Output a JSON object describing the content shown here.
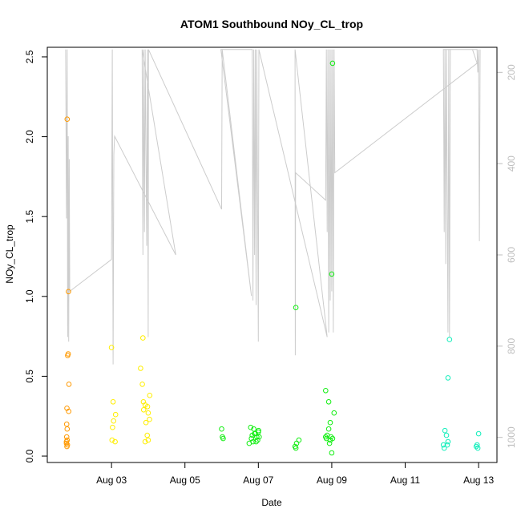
{
  "chart_data": {
    "type": "scatter",
    "title": "ATOM1 Southbound NOy_CL_trop",
    "xlabel": "Date",
    "ylabel": "NOy_CL_trop",
    "xlim": [
      "2016-08-01 06:00",
      "2016-08-13 12:00"
    ],
    "ylim": [
      -0.04,
      2.56
    ],
    "x_ticks": [
      {
        "date": "2016-08-03",
        "label": "Aug 03"
      },
      {
        "date": "2016-08-05",
        "label": "Aug 05"
      },
      {
        "date": "2016-08-07",
        "label": "Aug 07"
      },
      {
        "date": "2016-08-09",
        "label": "Aug 09"
      },
      {
        "date": "2016-08-11",
        "label": "Aug 11"
      },
      {
        "date": "2016-08-13",
        "label": "Aug 13"
      }
    ],
    "y_ticks": [
      0.0,
      0.5,
      1.0,
      1.5,
      2.0,
      2.5
    ],
    "y_tick_labels": [
      "0.0",
      "0.5",
      "1.0",
      "1.5",
      "2.0",
      "2.5"
    ],
    "right_axis": {
      "range": [
        1055,
        145
      ],
      "ticks": [
        200,
        400,
        600,
        800,
        1000
      ],
      "tick_labels": [
        "200",
        "400",
        "600",
        "800",
        "1000"
      ],
      "color": "#bebebe"
    },
    "point_colors": {
      "orange": "#ff9900",
      "yellow": "#ffee00",
      "green": "#11ee11",
      "cyan": "#11eebb",
      "line": "#cccccc"
    },
    "series": [
      {
        "color": "orange",
        "points": [
          [
            "2016-08-01 19:00",
            2.11
          ],
          [
            "2016-08-01 19:50",
            1.03
          ],
          [
            "2016-08-01 19:20",
            0.63
          ],
          [
            "2016-08-01 19:40",
            0.64
          ],
          [
            "2016-08-01 20:10",
            0.45
          ],
          [
            "2016-08-01 18:50",
            0.3
          ],
          [
            "2016-08-01 20:00",
            0.28
          ],
          [
            "2016-08-01 18:40",
            0.2
          ],
          [
            "2016-08-01 19:00",
            0.17
          ],
          [
            "2016-08-01 18:40",
            0.12
          ],
          [
            "2016-08-01 19:00",
            0.1
          ],
          [
            "2016-08-01 18:30",
            0.08
          ],
          [
            "2016-08-01 19:10",
            0.07
          ],
          [
            "2016-08-01 18:50",
            0.06
          ],
          [
            "2016-08-01 18:30",
            0.09
          ]
        ]
      },
      {
        "color": "yellow",
        "points": [
          [
            "2016-08-03 00:00",
            0.68
          ],
          [
            "2016-08-03 01:00",
            0.34
          ],
          [
            "2016-08-03 02:40",
            0.26
          ],
          [
            "2016-08-03 01:20",
            0.22
          ],
          [
            "2016-08-03 00:40",
            0.18
          ],
          [
            "2016-08-03 00:20",
            0.1
          ],
          [
            "2016-08-03 02:20",
            0.09
          ],
          [
            "2016-08-03 20:30",
            0.74
          ],
          [
            "2016-08-03 19:00",
            0.55
          ],
          [
            "2016-08-03 20:10",
            0.45
          ],
          [
            "2016-08-04 01:00",
            0.38
          ],
          [
            "2016-08-03 20:50",
            0.34
          ],
          [
            "2016-08-03 23:30",
            0.31
          ],
          [
            "2016-08-03 22:00",
            0.32
          ],
          [
            "2016-08-03 21:00",
            0.29
          ],
          [
            "2016-08-04 00:00",
            0.27
          ],
          [
            "2016-08-04 00:50",
            0.23
          ],
          [
            "2016-08-03 22:30",
            0.21
          ],
          [
            "2016-08-03 23:20",
            0.13
          ],
          [
            "2016-08-04 00:00",
            0.1
          ],
          [
            "2016-08-03 22:00",
            0.09
          ]
        ]
      },
      {
        "color": "green",
        "points": [
          [
            "2016-08-06 00:00",
            0.17
          ],
          [
            "2016-08-06 00:30",
            0.12
          ],
          [
            "2016-08-06 01:00",
            0.11
          ],
          [
            "2016-08-06 19:00",
            0.18
          ],
          [
            "2016-08-06 21:00",
            0.17
          ],
          [
            "2016-08-07 00:00",
            0.15
          ],
          [
            "2016-08-06 22:00",
            0.14
          ],
          [
            "2016-08-06 20:00",
            0.13
          ],
          [
            "2016-08-06 23:00",
            0.12
          ],
          [
            "2016-08-07 00:30",
            0.12
          ],
          [
            "2016-08-06 19:30",
            0.11
          ],
          [
            "2016-08-06 23:30",
            0.1
          ],
          [
            "2016-08-06 22:30",
            0.09
          ],
          [
            "2016-08-06 18:00",
            0.08
          ],
          [
            "2016-08-06 20:30",
            0.09
          ],
          [
            "2016-08-06 21:30",
            0.14
          ],
          [
            "2016-08-07 00:10",
            0.16
          ],
          [
            "2016-08-08 00:30",
            0.93
          ],
          [
            "2016-08-08 02:30",
            0.1
          ],
          [
            "2016-08-08 01:00",
            0.08
          ],
          [
            "2016-08-08 00:00",
            0.06
          ],
          [
            "2016-08-08 00:30",
            0.05
          ],
          [
            "2016-08-09 00:30",
            2.46
          ],
          [
            "2016-08-09 00:00",
            1.14
          ],
          [
            "2016-08-08 20:00",
            0.41
          ],
          [
            "2016-08-08 22:00",
            0.34
          ],
          [
            "2016-08-09 01:30",
            0.27
          ],
          [
            "2016-08-08 23:00",
            0.21
          ],
          [
            "2016-08-08 22:00",
            0.17
          ],
          [
            "2016-08-08 21:00",
            0.13
          ],
          [
            "2016-08-08 23:30",
            0.12
          ],
          [
            "2016-08-08 20:00",
            0.12
          ],
          [
            "2016-08-09 00:30",
            0.11
          ],
          [
            "2016-08-08 23:00",
            0.1
          ],
          [
            "2016-08-08 22:30",
            0.08
          ],
          [
            "2016-08-08 20:30",
            0.11
          ],
          [
            "2016-08-09 00:00",
            0.02
          ]
        ]
      },
      {
        "color": "cyan",
        "points": [
          [
            "2016-08-12 05:00",
            0.73
          ],
          [
            "2016-08-12 04:00",
            0.49
          ],
          [
            "2016-08-12 02:00",
            0.16
          ],
          [
            "2016-08-12 03:00",
            0.13
          ],
          [
            "2016-08-12 04:00",
            0.09
          ],
          [
            "2016-08-12 01:00",
            0.07
          ],
          [
            "2016-08-12 03:30",
            0.07
          ],
          [
            "2016-08-12 01:30",
            0.05
          ],
          [
            "2016-08-13 00:00",
            0.14
          ],
          [
            "2016-08-12 23:00",
            0.07
          ],
          [
            "2016-08-12 23:30",
            0.05
          ],
          [
            "2016-08-12 22:30",
            0.06
          ]
        ]
      }
    ],
    "altitude_trace": {
      "color": "line",
      "points": [
        [
          "2016-08-01 18:00",
          150
        ],
        [
          "2016-08-01 18:30",
          520
        ],
        [
          "2016-08-01 19:00",
          150
        ],
        [
          "2016-08-01 19:20",
          780
        ],
        [
          "2016-08-01 19:40",
          340
        ],
        [
          "2016-08-01 20:00",
          790
        ],
        [
          "2016-08-01 20:20",
          390
        ],
        [
          "2016-08-01 20:40",
          680
        ],
        [
          "2016-08-03 00:00",
          610
        ],
        [
          "2016-08-03 00:30",
          150
        ],
        [
          "2016-08-03 01:00",
          840
        ],
        [
          "2016-08-03 01:30",
          380
        ],
        [
          "2016-08-03 02:00",
          340
        ],
        [
          "2016-08-04 18:00",
          600
        ],
        [
          "2016-08-03 20:00",
          150
        ],
        [
          "2016-08-03 20:30",
          600
        ],
        [
          "2016-08-03 21:00",
          150
        ],
        [
          "2016-08-03 21:30",
          550
        ],
        [
          "2016-08-03 22:00",
          150
        ],
        [
          "2016-08-03 23:00",
          580
        ],
        [
          "2016-08-03 23:30",
          150
        ],
        [
          "2016-08-04 00:00",
          780
        ],
        [
          "2016-08-04 00:10",
          150
        ],
        [
          "2016-08-06 00:00",
          500
        ],
        [
          "2016-08-06 00:20",
          150
        ],
        [
          "2016-08-06 19:30",
          690
        ],
        [
          "2016-08-05 23:30",
          150
        ],
        [
          "2016-08-06 20:00",
          150
        ],
        [
          "2016-08-06 20:30",
          700
        ],
        [
          "2016-08-06 21:00",
          150
        ],
        [
          "2016-08-06 21:30",
          600
        ],
        [
          "2016-08-06 22:00",
          150
        ],
        [
          "2016-08-06 22:30",
          710
        ],
        [
          "2016-08-06 23:00",
          150
        ],
        [
          "2016-08-07 00:00",
          790
        ],
        [
          "2016-08-07 00:20",
          150
        ],
        [
          "2016-08-08 21:00",
          780
        ],
        [
          "2016-08-08 00:00",
          150
        ],
        [
          "2016-08-08 00:10",
          820
        ],
        [
          "2016-08-08 00:20",
          420
        ],
        [
          "2016-08-08 20:00",
          480
        ],
        [
          "2016-08-08 20:30",
          150
        ],
        [
          "2016-08-08 21:00",
          550
        ],
        [
          "2016-08-08 21:30",
          150
        ],
        [
          "2016-08-08 22:00",
          770
        ],
        [
          "2016-08-08 22:30",
          150
        ],
        [
          "2016-08-08 23:00",
          700
        ],
        [
          "2016-08-08 23:30",
          150
        ],
        [
          "2016-08-09 00:00",
          680
        ],
        [
          "2016-08-09 00:30",
          150
        ],
        [
          "2016-08-09 01:00",
          770
        ],
        [
          "2016-08-09 01:30",
          150
        ],
        [
          "2016-08-09 02:00",
          420
        ],
        [
          "2016-08-12 23:00",
          180
        ],
        [
          "2016-08-12 20:00",
          150
        ],
        [
          "2016-08-12 01:00",
          150
        ],
        [
          "2016-08-12 01:30",
          550
        ],
        [
          "2016-08-12 02:00",
          150
        ],
        [
          "2016-08-12 02:30",
          620
        ],
        [
          "2016-08-12 03:00",
          150
        ],
        [
          "2016-08-12 04:00",
          770
        ],
        [
          "2016-08-12 04:30",
          150
        ],
        [
          "2016-08-12 05:00",
          780
        ],
        [
          "2016-08-12 05:30",
          150
        ],
        [
          "2016-08-12 20:00",
          150
        ],
        [
          "2016-08-12 23:00",
          150
        ],
        [
          "2016-08-12 23:30",
          200
        ],
        [
          "2016-08-13 00:00",
          150
        ],
        [
          "2016-08-13 00:30",
          570
        ],
        [
          "2016-08-13 01:00",
          150
        ]
      ]
    }
  }
}
